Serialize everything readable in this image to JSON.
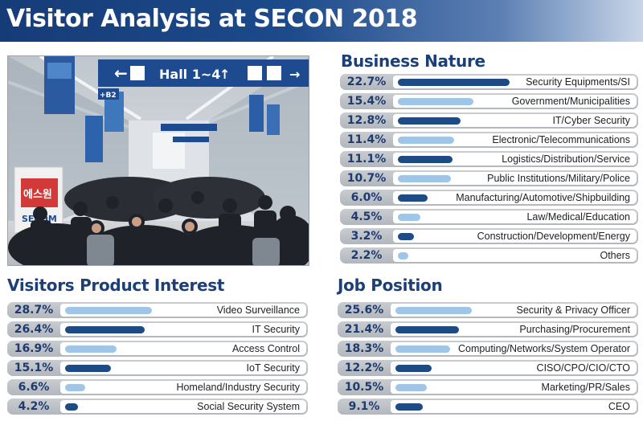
{
  "header": {
    "title": "Visitor Analysis at SECON 2018"
  },
  "photo": {
    "hall_sign": "Hall 1~4",
    "booth_sign_top": "에스원",
    "booth_sign_bottom": "SECOM",
    "gate_sign": "+B2"
  },
  "colors": {
    "dark_bar": "#1f4b84",
    "light_bar": "#9fc6e6",
    "title": "#1d3f78"
  },
  "chart_data": [
    {
      "type": "bar",
      "title": "Business Nature",
      "categories": [
        "Security Equipments/SI",
        "Government/Municipalities",
        "IT/Cyber Security",
        "Electronic/Telecommunications",
        "Logistics/Distribution/Service",
        "Public Institutions/Military/Police",
        "Manufacturing/Automotive/Shipbuilding",
        "Law/Medical/Education",
        "Construction/Development/Energy",
        "Others"
      ],
      "values": [
        22.7,
        15.4,
        12.8,
        11.4,
        11.1,
        10.7,
        6.0,
        4.5,
        3.2,
        2.2
      ],
      "labels": [
        "22.7%",
        "15.4%",
        "12.8%",
        "11.4%",
        "11.1%",
        "10.7%",
        "6.0%",
        "4.5%",
        "3.2%",
        "2.2%"
      ],
      "tones": [
        "dark",
        "light",
        "dark",
        "light",
        "dark",
        "light",
        "dark",
        "light",
        "dark",
        "light"
      ]
    },
    {
      "type": "bar",
      "title": "Visitors Product Interest",
      "categories": [
        "Video Surveillance",
        "IT Security",
        "Access Control",
        "IoT Security",
        "Homeland/Industry Security",
        "Social Security System"
      ],
      "values": [
        28.7,
        26.4,
        16.9,
        15.1,
        6.6,
        4.2
      ],
      "labels": [
        "28.7%",
        "26.4%",
        "16.9%",
        "15.1%",
        "6.6%",
        "4.2%"
      ],
      "tones": [
        "light",
        "dark",
        "light",
        "dark",
        "light",
        "dark"
      ]
    },
    {
      "type": "bar",
      "title": "Job Position",
      "categories": [
        "Security & Privacy Officer",
        "Purchasing/Procurement",
        "Computing/Networks/System Operator",
        "CISO/CPO/CIO/CTO",
        "Marketing/PR/Sales",
        "CEO"
      ],
      "values": [
        25.6,
        21.4,
        18.3,
        12.2,
        10.5,
        9.1
      ],
      "labels": [
        "25.6%",
        "21.4%",
        "18.3%",
        "12.2%",
        "10.5%",
        "9.1%"
      ],
      "tones": [
        "light",
        "dark",
        "light",
        "dark",
        "light",
        "dark"
      ]
    }
  ]
}
